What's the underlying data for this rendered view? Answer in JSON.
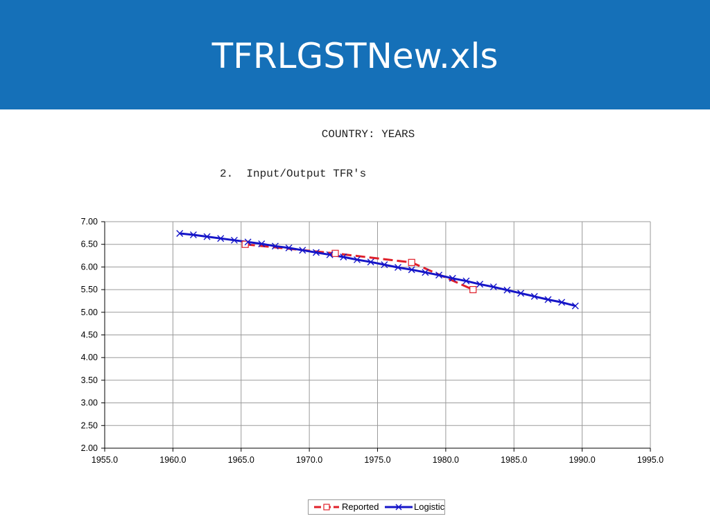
{
  "slide": {
    "title": "TFRLGSTNew.xls",
    "header_color": "#1570b8"
  },
  "chart_data": {
    "type": "line",
    "title": "COUNTRY: YEARS",
    "subtitle": "2.  Input/Output TFR's",
    "xlabel": "",
    "ylabel": "",
    "xlim": [
      1955,
      1995
    ],
    "ylim": [
      2.0,
      7.0
    ],
    "x_ticks": [
      "1955.0",
      "1960.0",
      "1965.0",
      "1970.0",
      "1975.0",
      "1980.0",
      "1985.0",
      "1990.0",
      "1995.0"
    ],
    "y_ticks": [
      "2.00",
      "2.50",
      "3.00",
      "3.50",
      "4.00",
      "4.50",
      "5.00",
      "5.50",
      "6.00",
      "6.50",
      "7.00"
    ],
    "grid": true,
    "legend_position": "bottom",
    "series": [
      {
        "name": "Reported",
        "color": "#e0202a",
        "marker": "square",
        "line_style": "dashed",
        "points": [
          [
            1965.3,
            6.5
          ],
          [
            1971.9,
            6.3
          ],
          [
            1977.5,
            6.1
          ],
          [
            1982.0,
            5.5
          ]
        ]
      },
      {
        "name": "Logistic",
        "color": "#1515c8",
        "marker": "x",
        "line_style": "solid",
        "points": [
          [
            1960.5,
            6.74
          ],
          [
            1961.5,
            6.71
          ],
          [
            1962.5,
            6.67
          ],
          [
            1963.5,
            6.63
          ],
          [
            1964.5,
            6.59
          ],
          [
            1965.5,
            6.55
          ],
          [
            1966.5,
            6.51
          ],
          [
            1967.5,
            6.46
          ],
          [
            1968.5,
            6.42
          ],
          [
            1969.5,
            6.37
          ],
          [
            1970.5,
            6.32
          ],
          [
            1971.5,
            6.27
          ],
          [
            1972.5,
            6.22
          ],
          [
            1973.5,
            6.16
          ],
          [
            1974.5,
            6.11
          ],
          [
            1975.5,
            6.05
          ],
          [
            1976.5,
            5.99
          ],
          [
            1977.5,
            5.94
          ],
          [
            1978.5,
            5.88
          ],
          [
            1979.5,
            5.82
          ],
          [
            1980.5,
            5.75
          ],
          [
            1981.5,
            5.69
          ],
          [
            1982.5,
            5.62
          ],
          [
            1983.5,
            5.56
          ],
          [
            1984.5,
            5.49
          ],
          [
            1985.5,
            5.42
          ],
          [
            1986.5,
            5.35
          ],
          [
            1987.5,
            5.28
          ],
          [
            1988.5,
            5.22
          ],
          [
            1989.5,
            5.14
          ]
        ]
      }
    ]
  }
}
